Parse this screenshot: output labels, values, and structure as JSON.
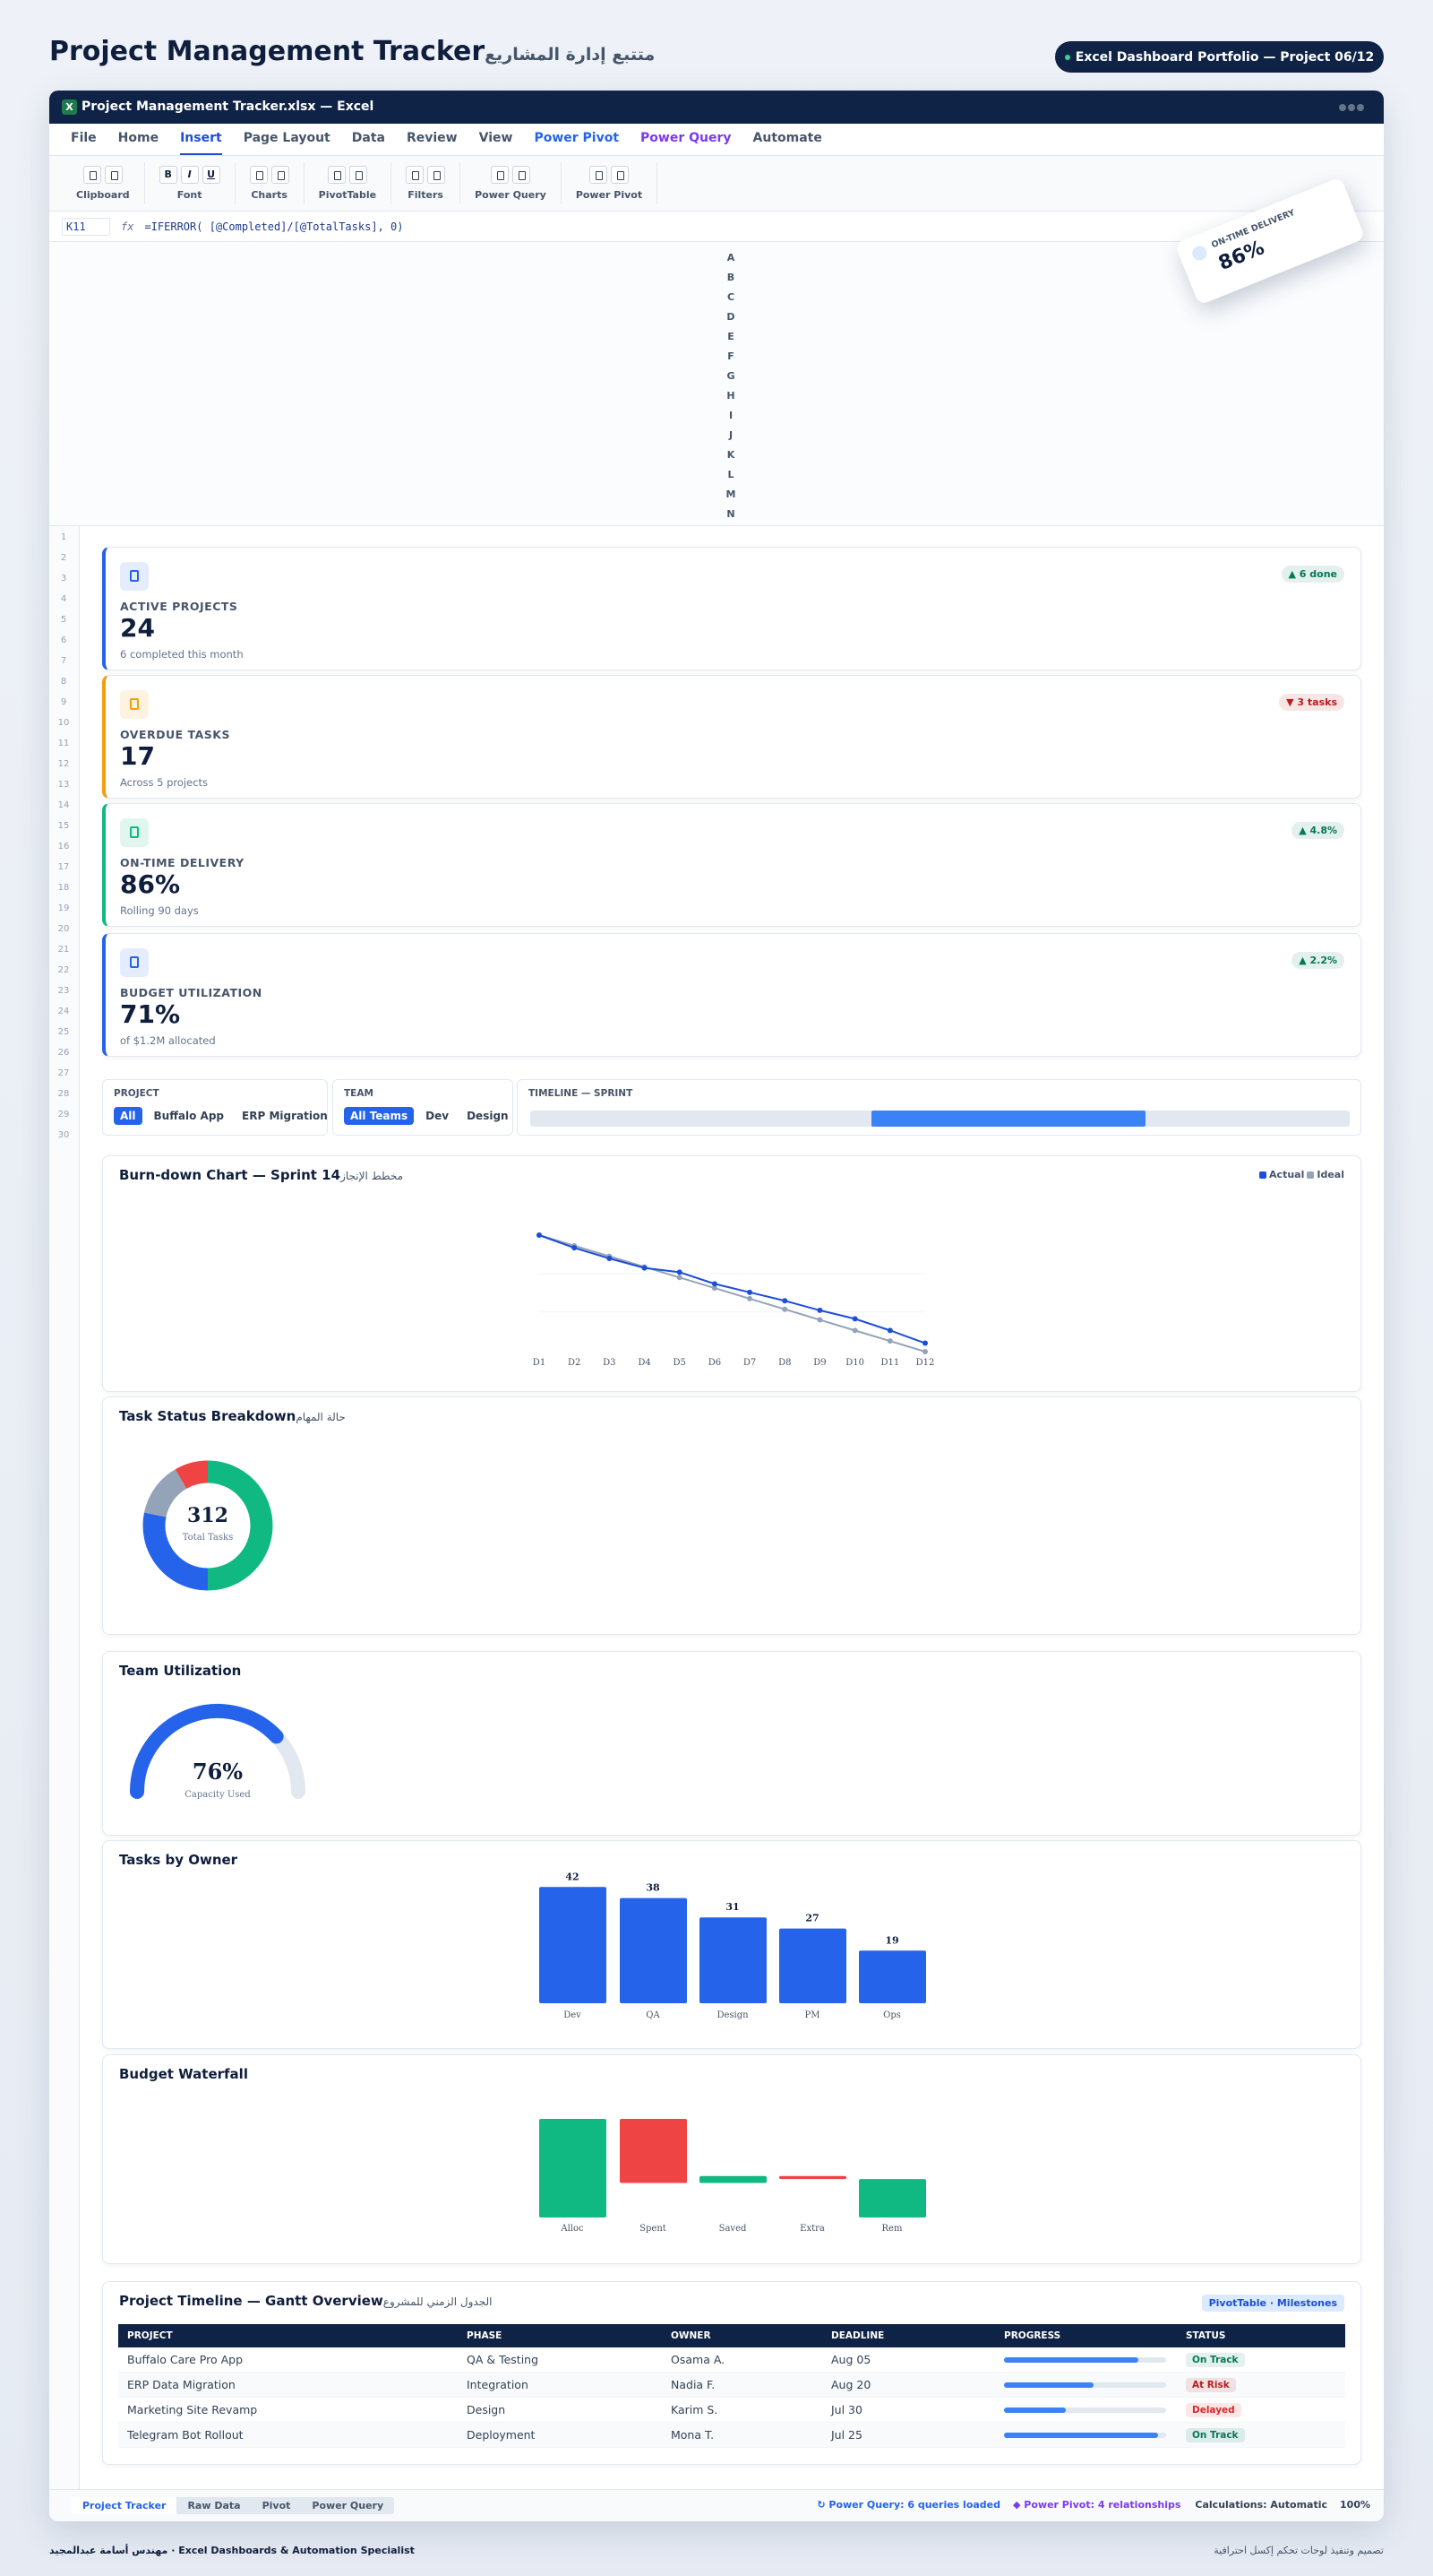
{
  "header": {
    "title": "Project Management Tracker",
    "subtitle_ar": "متتبع إدارة المشاريع",
    "badge": "Excel Dashboard Portfolio — Project 06/12"
  },
  "window": {
    "icon": "X",
    "title": "Project Management Tracker.xlsx — Excel"
  },
  "ribbon": {
    "tabs": [
      "File",
      "Home",
      "Insert",
      "Page Layout",
      "Data",
      "Review",
      "View",
      "Power Pivot",
      "Power Query",
      "Automate"
    ],
    "tab_colors": [
      "#475569",
      "#475569",
      "#1d4ed8",
      "#475569",
      "#475569",
      "#475569",
      "#475569",
      "#2563eb",
      "#7c3aed",
      "#475569"
    ],
    "active_tab": 2,
    "groups": [
      {
        "label": "Clipboard"
      },
      {
        "label": "Font",
        "buttons": [
          "B",
          "I",
          "U"
        ]
      },
      {
        "label": "Charts"
      },
      {
        "label": "PivotTable"
      },
      {
        "label": "Filters"
      },
      {
        "label": "Power Query"
      },
      {
        "label": "Power Pivot"
      }
    ]
  },
  "formula_bar": {
    "cell": "K11",
    "fx": "fx",
    "formula": "=IFERROR( [@Completed]/[@TotalTasks], 0)"
  },
  "columns": [
    "A",
    "B",
    "C",
    "D",
    "E",
    "F",
    "G",
    "H",
    "I",
    "J",
    "K",
    "L",
    "M",
    "N"
  ],
  "rows": [
    1,
    2,
    3,
    4,
    5,
    6,
    7,
    8,
    9,
    10,
    11,
    12,
    13,
    14,
    15,
    16,
    17,
    18,
    19,
    20,
    21,
    22,
    23,
    24,
    25,
    26,
    27,
    28,
    29,
    30
  ],
  "floating_card": {
    "label": "ON-TIME DELIVERY",
    "value": "86%"
  },
  "kpis": [
    {
      "label": "ACTIVE PROJECTS",
      "value": "24",
      "note": "6 completed this month",
      "delta": "▲ 6 done",
      "accent": "#2563eb",
      "delta_color": "#047857"
    },
    {
      "label": "OVERDUE TASKS",
      "value": "17",
      "note": "Across 5 projects",
      "delta": "▼ 3 tasks",
      "accent": "#f59e0b",
      "delta_color": "#b91c1c"
    },
    {
      "label": "ON-TIME DELIVERY",
      "value": "86%",
      "note": "Rolling 90 days",
      "delta": "▲ 4.8%",
      "accent": "#10b981",
      "delta_color": "#047857"
    },
    {
      "label": "BUDGET UTILIZATION",
      "value": "71%",
      "note": "of $1.2M allocated",
      "delta": "▲ 2.2%",
      "accent": "#2563eb",
      "delta_color": "#047857"
    }
  ],
  "slicers": [
    {
      "label": "PROJECT",
      "options": [
        "All",
        "Buffalo App",
        "ERP Migration"
      ]
    },
    {
      "label": "TEAM",
      "options": [
        "All Teams",
        "Dev",
        "Design"
      ]
    },
    {
      "label": "TIMELINE — SPRINT"
    }
  ],
  "chart_data": [
    {
      "type": "line",
      "title": "Burn-down Chart — Sprint 14",
      "title_ar": "مخطط الإنجاز",
      "categories": [
        "D1",
        "D2",
        "D3",
        "D4",
        "D5",
        "D6",
        "D7",
        "D8",
        "D9",
        "D10",
        "D11",
        "D12"
      ],
      "series": [
        {
          "name": "Actual",
          "color": "#1d4ed8",
          "values": [
            110,
            98,
            88,
            79,
            75,
            64,
            56,
            48,
            39,
            31,
            20,
            8
          ]
        },
        {
          "name": "Ideal",
          "color": "#94a3b8",
          "values": [
            110,
            100,
            90,
            80,
            70,
            60,
            50,
            40,
            30,
            20,
            10,
            0
          ]
        }
      ],
      "ylim": [
        0,
        110
      ]
    },
    {
      "type": "donut",
      "title": "Task Status Breakdown",
      "title_ar": "حالة المهام",
      "values": [
        156,
        88,
        42,
        26
      ],
      "colors": [
        "#10b981",
        "#2563eb",
        "#94a3b8",
        "#ef4444"
      ],
      "total": 312,
      "total_label": "Total Tasks"
    },
    {
      "type": "gauge",
      "title": "Team Utilization",
      "value": 76,
      "value_label": "76%",
      "label": "Capacity Used",
      "ylim": [
        0,
        100
      ],
      "color": "#2563eb"
    },
    {
      "type": "bar",
      "title": "Tasks by Owner",
      "categories": [
        "Dev",
        "QA",
        "Design",
        "PM",
        "Ops"
      ],
      "values": [
        42,
        38,
        31,
        27,
        19
      ],
      "color": "#2563eb",
      "ylim": [
        0,
        45
      ]
    },
    {
      "type": "waterfall",
      "title": "Budget Waterfall",
      "categories": [
        "Alloc",
        "Spent",
        "Saved",
        "Extra",
        "Rem"
      ],
      "values": [
        100,
        -65,
        7,
        -3,
        39
      ],
      "colors": {
        "up": "#10b981",
        "down": "#ef4444",
        "total": "#10b981"
      },
      "ylim": [
        0,
        100
      ]
    }
  ],
  "gantt": {
    "title": "Project Timeline — Gantt Overview",
    "title_ar": "الجدول الزمني للمشروع",
    "badge": "PivotTable · Milestones",
    "columns": [
      "PROJECT",
      "PHASE",
      "OWNER",
      "DEADLINE",
      "PROGRESS",
      "STATUS"
    ],
    "rows": [
      [
        "Buffalo Care Pro App",
        "QA & Testing",
        "Osama A.",
        "Aug 05",
        83,
        "On Track"
      ],
      [
        "ERP Data Migration",
        "Integration",
        "Nadia F.",
        "Aug 20",
        55,
        "At Risk"
      ],
      [
        "Marketing Site Revamp",
        "Design",
        "Karim S.",
        "Jul 30",
        38,
        "Delayed"
      ],
      [
        "Telegram Bot Rollout",
        "Deployment",
        "Mona T.",
        "Jul 25",
        95,
        "On Track"
      ]
    ],
    "status_colors": [
      "#047857",
      "#b91c1c",
      "#dc2626",
      "#047857"
    ]
  },
  "sheet_tabs": [
    "Project Tracker",
    "Raw Data",
    "Pivot",
    "Power Query"
  ],
  "status_bar": [
    "↻ Power Query: 6 queries loaded",
    "◆ Power Pivot: 4 relationships",
    "Calculations: Automatic",
    "100%"
  ],
  "footer": {
    "left": "مهندس أسامة عبدالمجيد  ·  Excel Dashboards & Automation Specialist",
    "right": "تصميم وتنفيذ لوحات تحكم إكسل احترافية"
  }
}
